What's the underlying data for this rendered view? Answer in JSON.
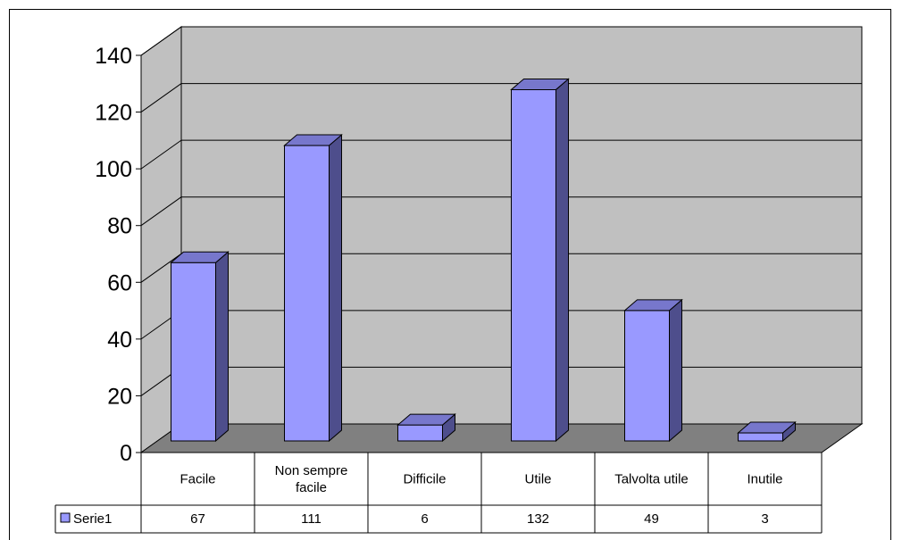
{
  "chart_data": {
    "type": "bar",
    "style": "3d-column-with-data-table",
    "categories": [
      "Facile",
      "Non sempre facile",
      "Difficile",
      "Utile",
      "Talvolta utile",
      "Inutile"
    ],
    "category_lines": [
      [
        "Facile"
      ],
      [
        "Non sempre",
        "facile"
      ],
      [
        "Difficile"
      ],
      [
        "Utile"
      ],
      [
        "Talvolta utile"
      ],
      [
        "Inutile"
      ]
    ],
    "series": [
      {
        "name": "Serie1",
        "values": [
          67,
          111,
          6,
          132,
          49,
          3
        ]
      }
    ],
    "ylim": [
      0,
      140
    ],
    "yticks": [
      0,
      20,
      40,
      60,
      80,
      100,
      120,
      140
    ],
    "title": "",
    "xlabel": "",
    "ylabel": "",
    "grid": true,
    "legend": "data-table-left",
    "colors": {
      "bar_front": "#9999ff",
      "bar_side": "#4e4e8c",
      "bar_top": "#7777cc",
      "plot_back": "#c0c0c0",
      "plot_floor": "#808080"
    }
  }
}
